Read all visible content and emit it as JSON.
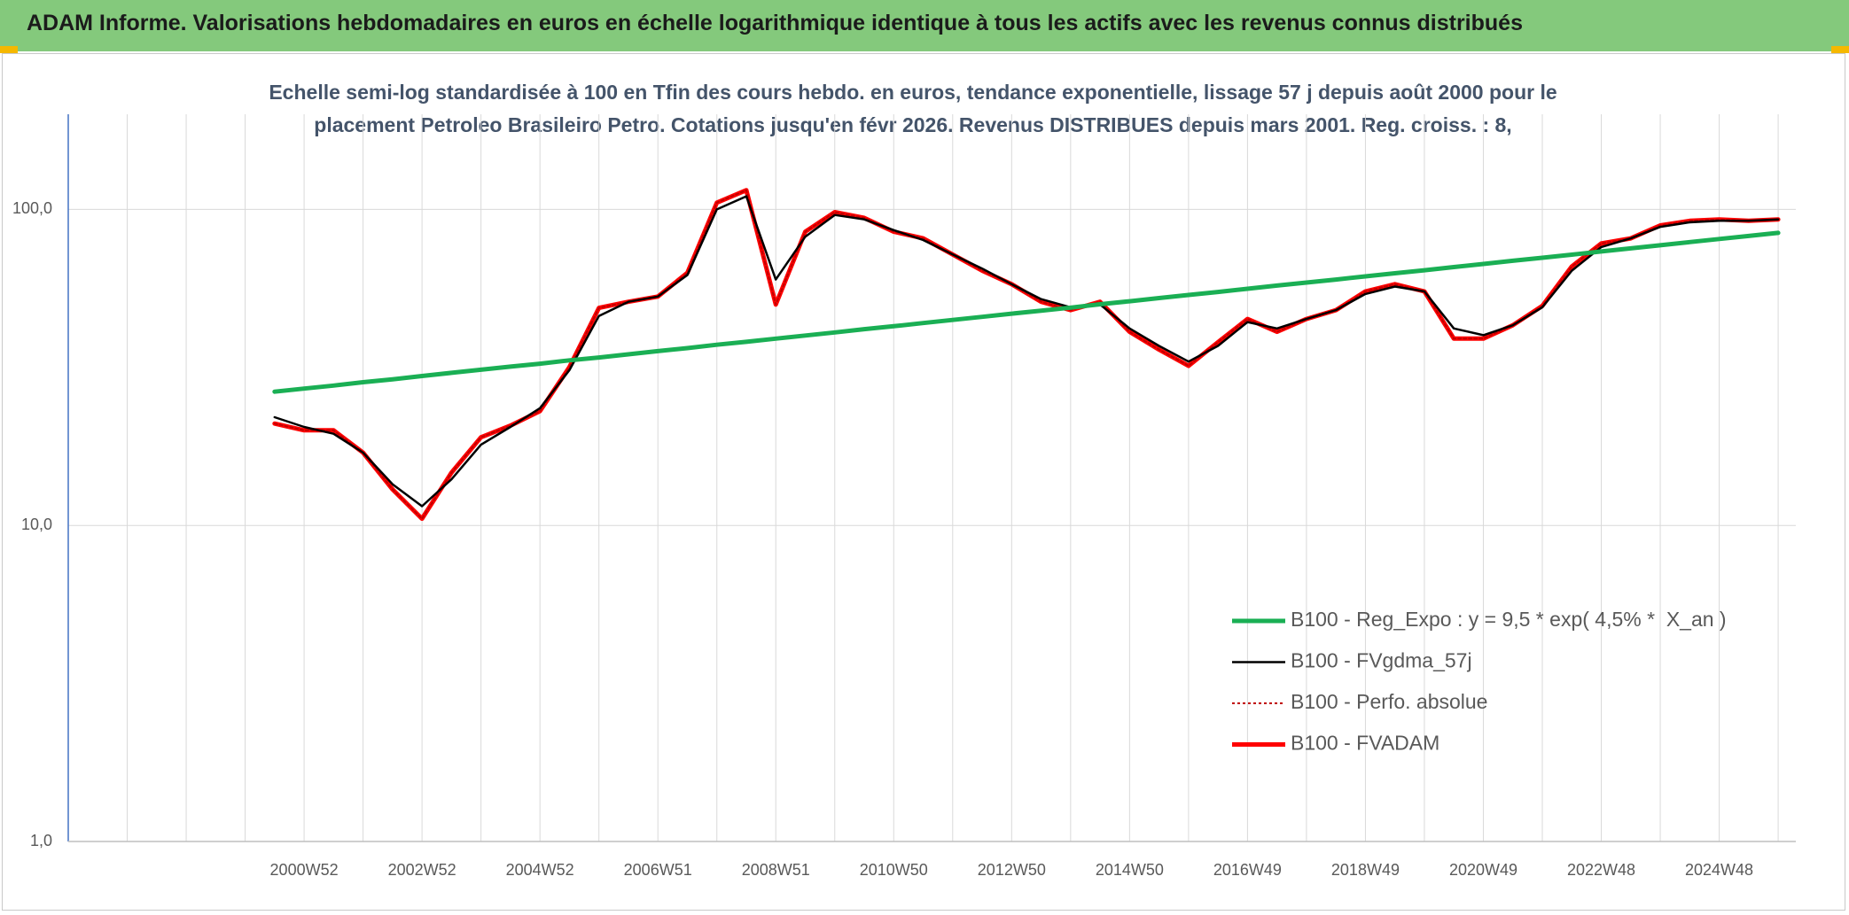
{
  "header": {
    "title": "ADAM Informe. Valorisations hebdomadaires en euros en échelle logarithmique identique à tous les actifs avec les revenus connus distribués"
  },
  "chart_data": {
    "type": "line",
    "title": "Echelle semi-log standardisée à 100 en Tfin des cours hebdo. en euros, tendance exponentielle, lissage 57 j depuis août 2000 pour le placement Petroleo Brasileiro Petro. Cotations jusqu'en févr 2026. Revenus DISTRIBUES depuis mars 2001. Reg. croiss. : 8,",
    "log_scale": true,
    "grid": true,
    "legend": "right",
    "ylim": [
      1,
      200
    ],
    "yticks": [
      {
        "value": 1,
        "label": "1,0"
      },
      {
        "value": 10,
        "label": "10,0"
      },
      {
        "value": 100,
        "label": "100,0"
      }
    ],
    "categories": [
      null,
      null,
      null,
      null,
      null,
      null,
      null,
      null,
      "2000W52",
      null,
      null,
      null,
      "2002W52",
      null,
      null,
      null,
      "2004W52",
      null,
      null,
      null,
      "2006W51",
      null,
      null,
      null,
      "2008W51",
      null,
      null,
      null,
      "2010W50",
      null,
      null,
      null,
      "2012W50",
      null,
      null,
      null,
      "2014W50",
      null,
      null,
      null,
      "2016W49",
      null,
      null,
      null,
      "2018W49",
      null,
      null,
      null,
      "2020W49",
      null,
      null,
      null,
      "2022W48",
      null,
      null,
      null,
      "2024W48",
      null,
      null
    ],
    "series": [
      {
        "name": "B100 - Reg_Expo : y = 9,5 * exp( 4,5% *  X_an )",
        "color": "#1aaf54",
        "line_style": "solid",
        "values": [
          null,
          null,
          null,
          null,
          null,
          null,
          null,
          26.5,
          27.1,
          27.7,
          28.4,
          29.0,
          29.7,
          30.4,
          31.1,
          31.8,
          32.5,
          33.3,
          34.0,
          34.8,
          35.6,
          36.4,
          37.3,
          38.1,
          39.0,
          39.9,
          40.8,
          41.8,
          42.7,
          43.7,
          44.7,
          45.7,
          46.8,
          47.8,
          48.9,
          50.1,
          51.2,
          52.4,
          53.6,
          54.8,
          56.1,
          57.4,
          58.7,
          60.0,
          61.4,
          62.8,
          64.2,
          65.7,
          67.2,
          68.8,
          70.3,
          71.9,
          73.6,
          75.3,
          77.0,
          78.8,
          80.6,
          82.4,
          84.3
        ]
      },
      {
        "name": "B100 - FVgdma_57j",
        "color": "#000000",
        "line_style": "solid",
        "values": [
          null,
          null,
          null,
          null,
          null,
          null,
          null,
          22,
          20.5,
          19.5,
          17,
          13.5,
          11.5,
          14,
          18,
          20.5,
          23.5,
          31,
          46,
          51,
          53,
          62,
          100,
          110,
          60,
          82,
          96,
          93,
          86,
          80,
          72,
          65,
          58,
          52,
          49,
          50,
          42,
          37,
          33,
          37,
          44,
          42,
          45,
          48,
          54,
          57,
          55,
          42,
          40,
          43,
          49,
          64,
          76,
          81,
          88,
          91,
          92,
          92,
          93
        ]
      },
      {
        "name": "B100 - Perfo. absolue",
        "color": "#c00000",
        "line_style": "dotted",
        "values": [
          null,
          null,
          null,
          null,
          null,
          null,
          null,
          21,
          20,
          20,
          17,
          13,
          10.5,
          14.7,
          19,
          20.7,
          23,
          31.7,
          48.8,
          51,
          53,
          63,
          105,
          115,
          50,
          85,
          98,
          94,
          85,
          81,
          72,
          64,
          58,
          51,
          48,
          51,
          41,
          36,
          32,
          38,
          45,
          41,
          45,
          48,
          55,
          58,
          55,
          39,
          39,
          43,
          49.5,
          66,
          78,
          81,
          89,
          92,
          93,
          92,
          93
        ]
      },
      {
        "name": "B100 - FVADAM",
        "color": "#ff0000",
        "line_style": "solid",
        "values": [
          null,
          null,
          null,
          null,
          null,
          null,
          null,
          21,
          20,
          20,
          17,
          13,
          10.5,
          14.7,
          19,
          20.7,
          23,
          31.7,
          48.8,
          51,
          53,
          63,
          105,
          115,
          50,
          85,
          98,
          94,
          85,
          81,
          72,
          64,
          58,
          51,
          48,
          51,
          41,
          36,
          32,
          38,
          45,
          41,
          45,
          48,
          55,
          58,
          55,
          39,
          39,
          43,
          49.5,
          66,
          78,
          81,
          89,
          92,
          93,
          92,
          93
        ]
      }
    ]
  }
}
